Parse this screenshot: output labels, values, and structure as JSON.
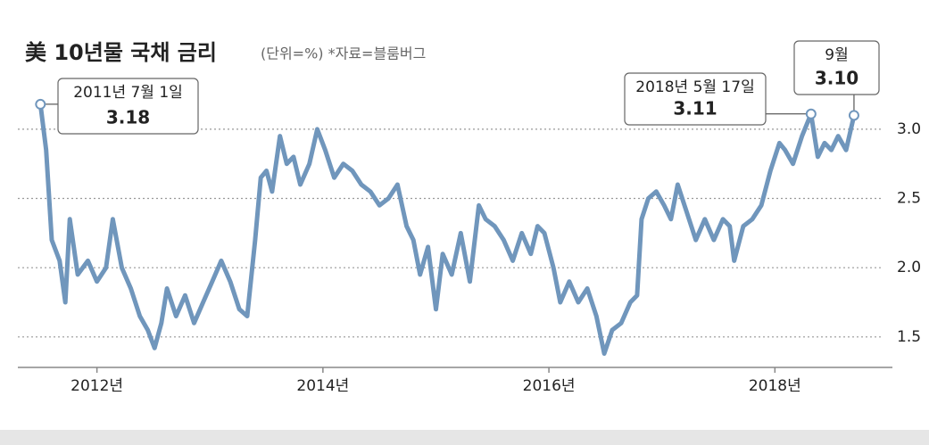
{
  "chart_data": {
    "type": "line",
    "title": "美 10년물 국채 금리",
    "subtitle": "(단위=%) *자료=블룸버그",
    "x": [
      2011.5,
      2011.55,
      2011.6,
      2011.67,
      2011.72,
      2011.76,
      2011.83,
      2011.92,
      2012.0,
      2012.08,
      2012.14,
      2012.22,
      2012.3,
      2012.38,
      2012.45,
      2012.51,
      2012.57,
      2012.62,
      2012.7,
      2012.78,
      2012.86,
      2012.94,
      2013.02,
      2013.1,
      2013.18,
      2013.26,
      2013.33,
      2013.4,
      2013.45,
      2013.5,
      2013.55,
      2013.62,
      2013.68,
      2013.74,
      2013.8,
      2013.88,
      2013.95,
      2014.02,
      2014.1,
      2014.18,
      2014.26,
      2014.34,
      2014.42,
      2014.5,
      2014.58,
      2014.66,
      2014.74,
      2014.8,
      2014.86,
      2014.93,
      2015.0,
      2015.06,
      2015.14,
      2015.22,
      2015.3,
      2015.38,
      2015.44,
      2015.52,
      2015.6,
      2015.68,
      2015.76,
      2015.84,
      2015.9,
      2015.96,
      2016.04,
      2016.1,
      2016.18,
      2016.26,
      2016.34,
      2016.42,
      2016.49,
      2016.56,
      2016.64,
      2016.72,
      2016.78,
      2016.82,
      2016.88,
      2016.95,
      2017.02,
      2017.08,
      2017.14,
      2017.22,
      2017.3,
      2017.38,
      2017.46,
      2017.54,
      2017.6,
      2017.64,
      2017.72,
      2017.8,
      2017.88,
      2017.96,
      2018.04,
      2018.09,
      2018.16,
      2018.24,
      2018.32,
      2018.38,
      2018.44,
      2018.5,
      2018.56,
      2018.63,
      2018.7
    ],
    "series": [
      {
        "color": "#7096bc",
        "values": [
          3.18,
          2.85,
          2.2,
          2.05,
          1.75,
          2.35,
          1.95,
          2.05,
          1.9,
          2.0,
          2.35,
          2.0,
          1.85,
          1.65,
          1.55,
          1.42,
          1.6,
          1.85,
          1.65,
          1.8,
          1.6,
          1.75,
          1.9,
          2.05,
          1.9,
          1.7,
          1.65,
          2.2,
          2.65,
          2.7,
          2.55,
          2.95,
          2.75,
          2.8,
          2.6,
          2.75,
          3.0,
          2.85,
          2.65,
          2.75,
          2.7,
          2.6,
          2.55,
          2.45,
          2.5,
          2.6,
          2.3,
          2.2,
          1.95,
          2.15,
          1.7,
          2.1,
          1.95,
          2.25,
          1.9,
          2.45,
          2.35,
          2.3,
          2.2,
          2.05,
          2.25,
          2.1,
          2.3,
          2.25,
          2.0,
          1.75,
          1.9,
          1.75,
          1.85,
          1.65,
          1.38,
          1.55,
          1.6,
          1.75,
          1.8,
          2.35,
          2.5,
          2.55,
          2.45,
          2.35,
          2.6,
          2.4,
          2.2,
          2.35,
          2.2,
          2.35,
          2.3,
          2.05,
          2.3,
          2.35,
          2.45,
          2.7,
          2.9,
          2.85,
          2.75,
          2.95,
          3.11,
          2.8,
          2.9,
          2.85,
          2.95,
          2.85,
          3.1
        ]
      }
    ],
    "xlim": [
      2011.3,
      2019.04
    ],
    "ylim": [
      1.28,
      3.45
    ],
    "xticks": [
      {
        "value": 2012,
        "label": "2012년"
      },
      {
        "value": 2014,
        "label": "2014년"
      },
      {
        "value": 2016,
        "label": "2016년"
      },
      {
        "value": 2018,
        "label": "2018년"
      }
    ],
    "yticks": [
      1.5,
      {
        "value": 2,
        "label": "2.0"
      },
      2.5,
      {
        "value": 3,
        "label": "3.0"
      }
    ],
    "grid": true,
    "annotations": [
      {
        "text": "2011년 7월 1일",
        "value": 3.18
      },
      {
        "text": "2018년 5월 17일",
        "value": 3.11
      },
      {
        "text": "9월",
        "value": {
          "value": 3.1,
          "label": "3.10"
        }
      }
    ]
  }
}
